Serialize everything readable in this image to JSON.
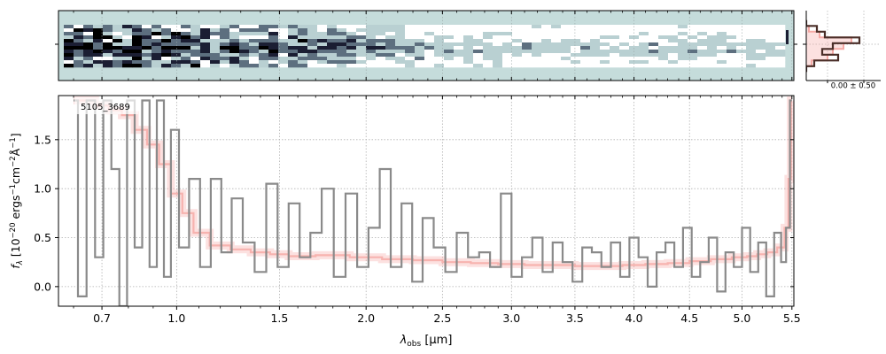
{
  "chart_data": [
    {
      "type": "heatmap",
      "panel": "2d-spectrum",
      "description_note": "",
      "background_color": "#c5dcdb",
      "colormap": [
        "#ffffff",
        "#b9d0d2",
        "#5d6f7f",
        "#1b1e33",
        "#000000"
      ],
      "grid": true,
      "columns": 74,
      "rows": 12
    },
    {
      "type": "line",
      "panel": "1d-spectrum",
      "label": "5105_3689",
      "xlabel_main": "λ",
      "xlabel_sub": "obs",
      "xlabel_unit": "[μm]",
      "ylabel": "f_λ [10^-20 ergs^-1cm^-2Å^-1]",
      "ylabel_parts": {
        "f": "f",
        "sub": "λ",
        "open": " [10",
        "exp1": "−20",
        "mid1": " ergs",
        "exp2": "−1",
        "mid2": "cm",
        "exp3": "−2",
        "mid3": "Å",
        "exp4": "−1",
        "close": "]"
      },
      "ylim": [
        -0.2,
        1.95
      ],
      "xlim": [
        0.55,
        5.52
      ],
      "x_scale": "sqrt",
      "x_ticks": [
        {
          "value": 0.7,
          "label": "0.7"
        },
        {
          "value": 1.0,
          "label": "1.0"
        },
        {
          "value": 1.5,
          "label": "1.5"
        },
        {
          "value": 2.0,
          "label": "2.0"
        },
        {
          "value": 2.5,
          "label": "2.5"
        },
        {
          "value": 3.0,
          "label": "3.0"
        },
        {
          "value": 3.5,
          "label": "3.5"
        },
        {
          "value": 4.0,
          "label": "4.0"
        },
        {
          "value": 4.5,
          "label": "4.5"
        },
        {
          "value": 5.0,
          "label": "5.0"
        },
        {
          "value": 5.5,
          "label": "5.5"
        }
      ],
      "y_ticks": [
        {
          "value": 0.0,
          "label": "0.0"
        },
        {
          "value": 0.5,
          "label": "0.5"
        },
        {
          "value": 1.0,
          "label": "1.0"
        },
        {
          "value": 1.5,
          "label": "1.5"
        }
      ],
      "grid": true,
      "series": [
        {
          "role": "observed-flux",
          "color": "#8a8a8a",
          "step": true,
          "x": [
            0.6,
            0.63,
            0.66,
            0.69,
            0.72,
            0.75,
            0.78,
            0.81,
            0.84,
            0.87,
            0.9,
            0.93,
            0.96,
            0.99,
            1.03,
            1.08,
            1.13,
            1.18,
            1.23,
            1.28,
            1.34,
            1.4,
            1.46,
            1.52,
            1.58,
            1.64,
            1.7,
            1.77,
            1.84,
            1.91,
            1.98,
            2.05,
            2.12,
            2.19,
            2.26,
            2.33,
            2.4,
            2.48,
            2.56,
            2.64,
            2.72,
            2.8,
            2.88,
            2.96,
            3.04,
            3.12,
            3.2,
            3.28,
            3.36,
            3.44,
            3.52,
            3.6,
            3.68,
            3.76,
            3.84,
            3.92,
            4.0,
            4.08,
            4.16,
            4.24,
            4.32,
            4.4,
            4.48,
            4.56,
            4.64,
            4.72,
            4.8,
            4.88,
            4.96,
            5.04,
            5.12,
            5.2,
            5.28,
            5.36,
            5.42,
            5.46,
            5.5
          ],
          "y": [
            1.9,
            -0.1,
            1.9,
            0.3,
            1.9,
            1.2,
            -0.2,
            1.9,
            0.4,
            1.9,
            0.2,
            1.9,
            0.1,
            1.6,
            0.4,
            1.1,
            0.2,
            1.1,
            0.35,
            0.9,
            0.45,
            0.15,
            1.05,
            0.2,
            0.85,
            0.3,
            0.55,
            1.0,
            0.1,
            0.95,
            0.2,
            0.6,
            1.2,
            0.2,
            0.85,
            0.05,
            0.7,
            0.4,
            0.15,
            0.55,
            0.3,
            0.35,
            0.2,
            0.95,
            0.1,
            0.3,
            0.5,
            0.15,
            0.45,
            0.25,
            0.05,
            0.4,
            0.35,
            0.2,
            0.45,
            0.1,
            0.5,
            0.3,
            0.0,
            0.35,
            0.45,
            0.2,
            0.6,
            0.1,
            0.25,
            0.5,
            -0.05,
            0.35,
            0.2,
            0.6,
            0.15,
            0.45,
            -0.1,
            0.55,
            0.25,
            0.6,
            1.9
          ]
        },
        {
          "role": "model",
          "color": "#f6aaa6",
          "step": true,
          "x": [
            0.6,
            0.65,
            0.7,
            0.75,
            0.8,
            0.85,
            0.9,
            0.95,
            1.0,
            1.05,
            1.1,
            1.2,
            1.3,
            1.4,
            1.5,
            1.6,
            1.8,
            2.0,
            2.2,
            2.4,
            2.6,
            2.8,
            3.0,
            3.2,
            3.4,
            3.6,
            3.8,
            4.0,
            4.2,
            4.4,
            4.6,
            4.8,
            5.0,
            5.1,
            5.2,
            5.3,
            5.4,
            5.45,
            5.48,
            5.5
          ],
          "y": [
            1.9,
            1.9,
            1.85,
            1.8,
            1.75,
            1.6,
            1.45,
            1.25,
            0.95,
            0.75,
            0.55,
            0.42,
            0.38,
            0.35,
            0.33,
            0.31,
            0.32,
            0.3,
            0.28,
            0.27,
            0.25,
            0.24,
            0.23,
            0.22,
            0.22,
            0.21,
            0.21,
            0.22,
            0.23,
            0.24,
            0.26,
            0.28,
            0.3,
            0.31,
            0.33,
            0.35,
            0.4,
            0.6,
            1.1,
            1.9
          ]
        }
      ]
    },
    {
      "type": "line",
      "panel": "profile",
      "annotation": "0.00 ± 0.50",
      "grid": true,
      "series": [
        {
          "role": "model-profile",
          "color": "#f6aaa6",
          "step": true,
          "values": [
            0.0,
            0.05,
            0.25,
            0.85,
            0.7,
            0.5,
            0.4,
            0.1,
            0.0
          ]
        },
        {
          "role": "data-profile",
          "color": "#4a2e28",
          "step": true,
          "values": [
            0.0,
            0.2,
            0.35,
            1.0,
            0.5,
            0.3,
            0.6,
            0.15,
            0.0
          ]
        }
      ]
    }
  ]
}
